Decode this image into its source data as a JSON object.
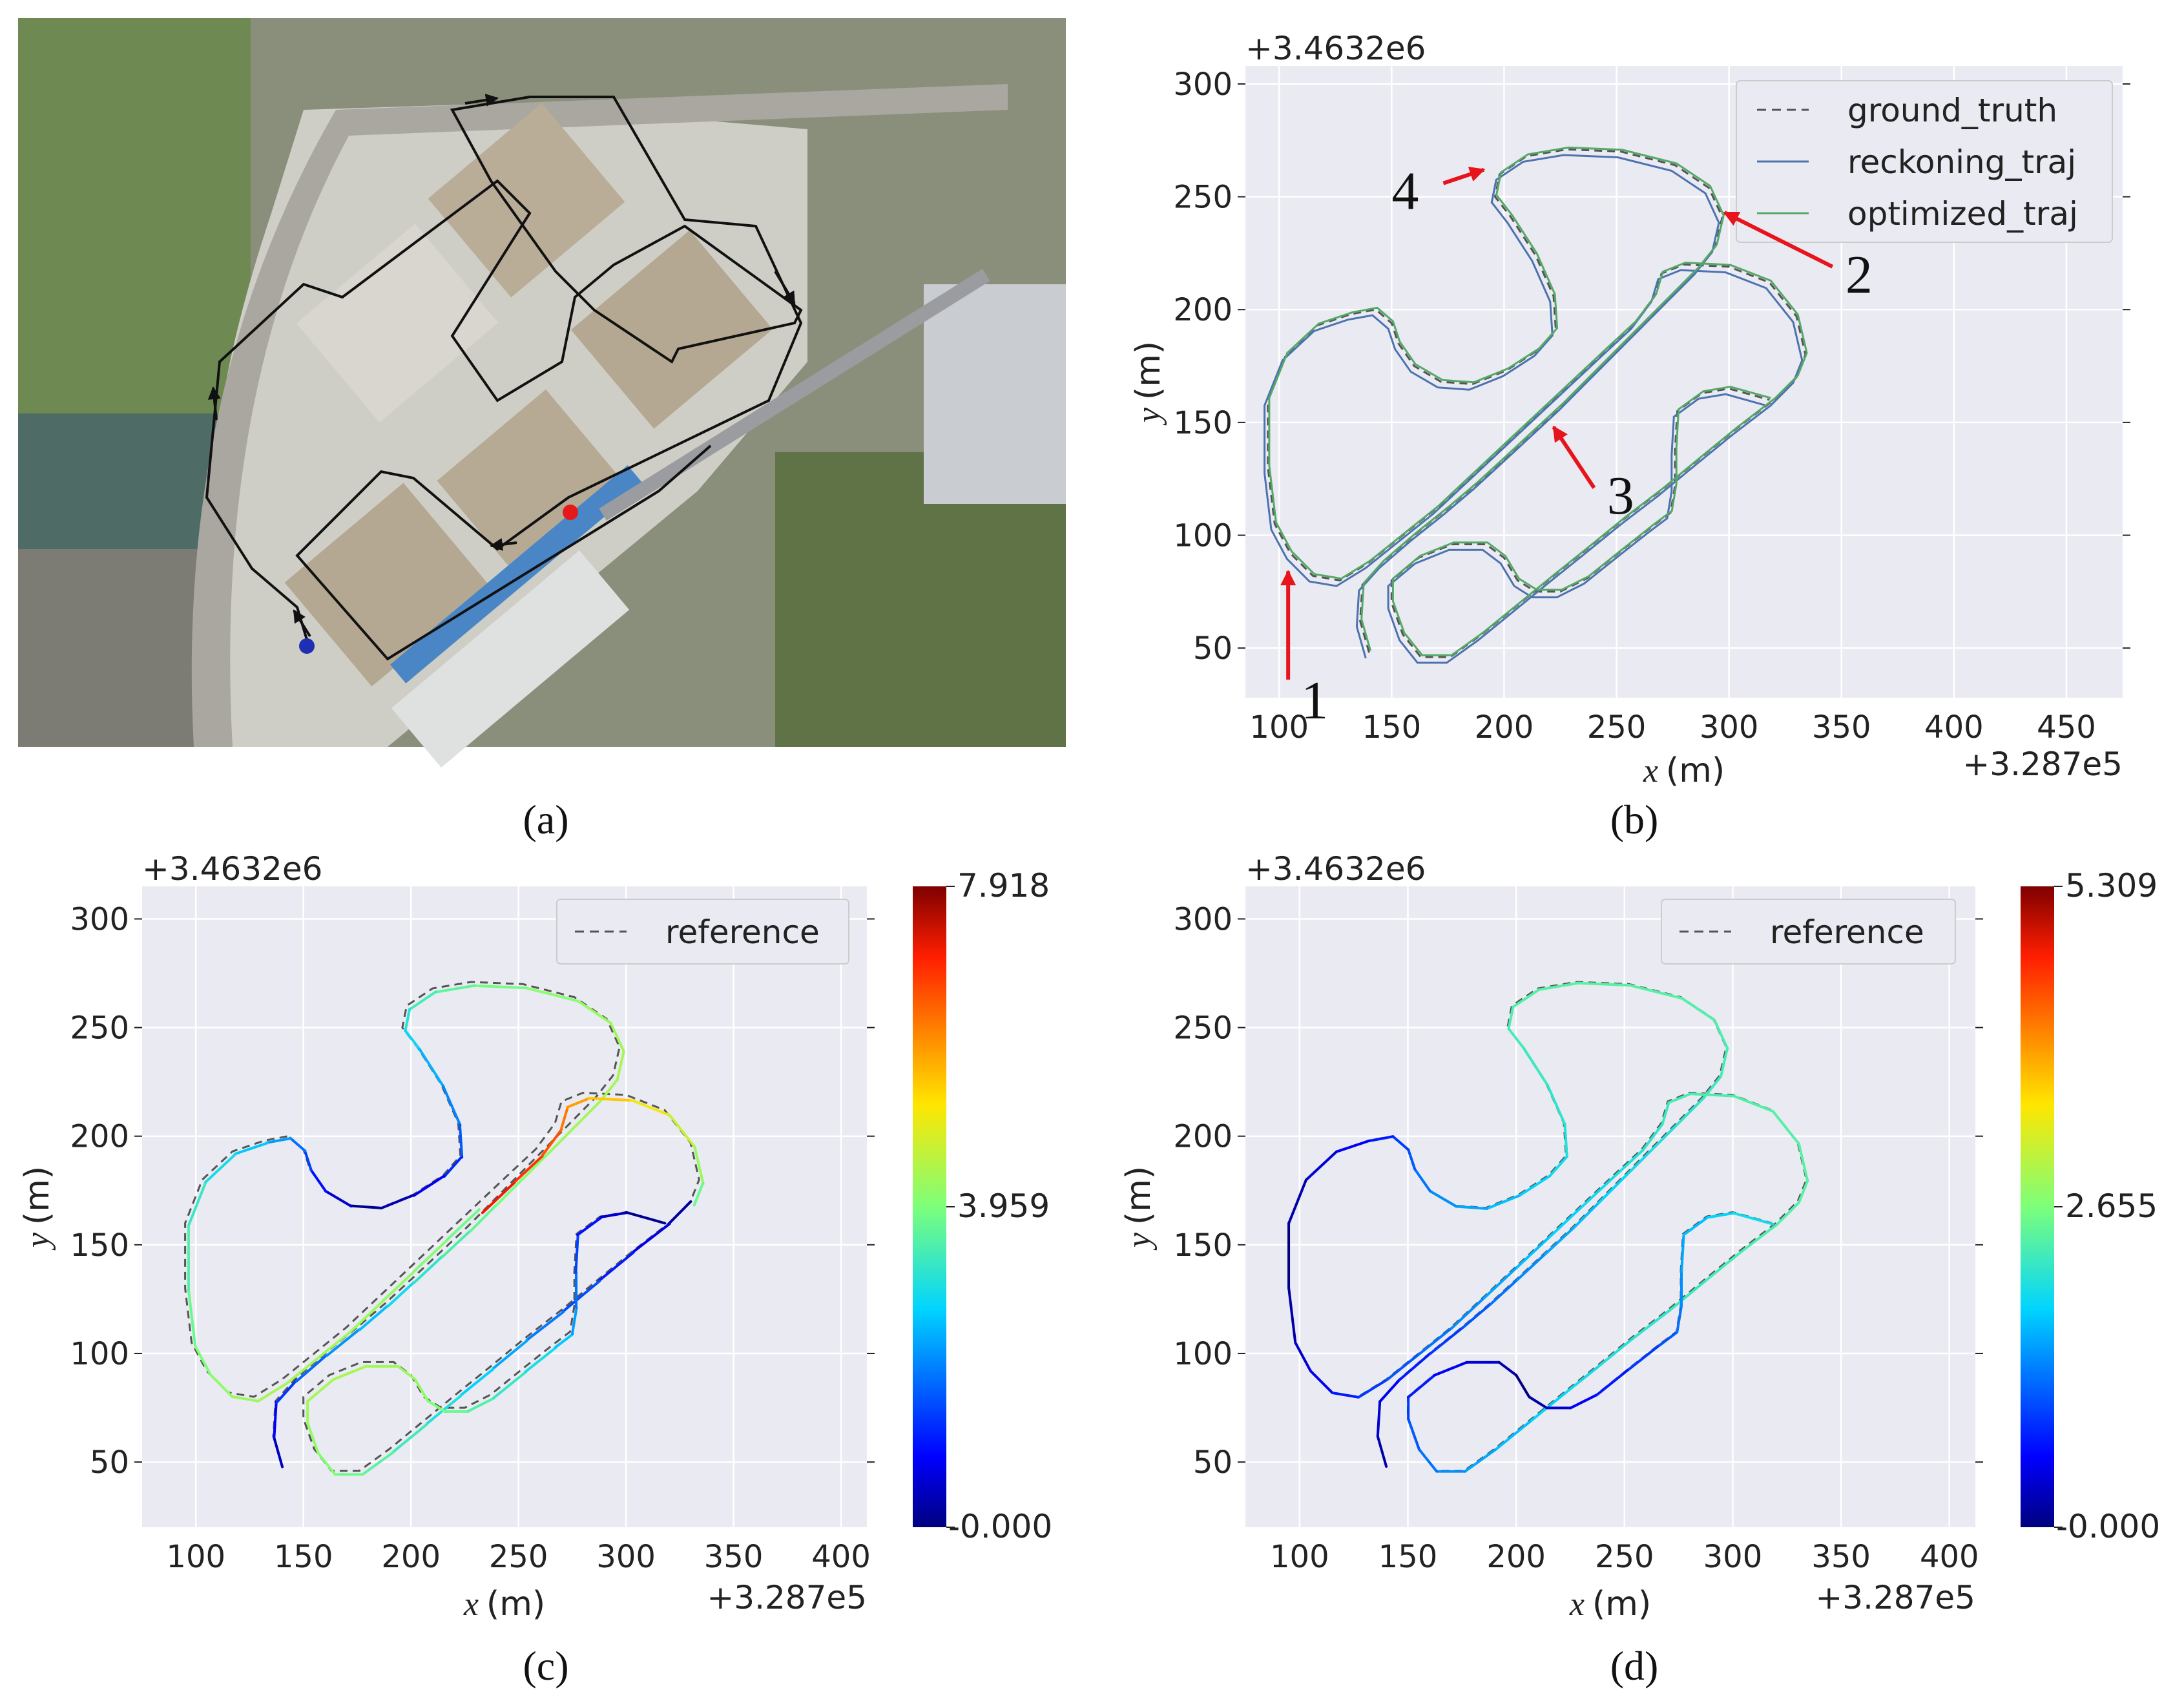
{
  "panels": {
    "a": {
      "caption": "(a)"
    },
    "b": {
      "caption": "(b)"
    },
    "c": {
      "caption": "(c)"
    },
    "d": {
      "caption": "(d)"
    }
  },
  "colors": {
    "plot_bg": "#eaeaf2",
    "grid": "#ffffff",
    "ground_truth": "#555555",
    "reckoning": "#4c72b0",
    "optimized": "#55a868",
    "arrow": "#e8141b"
  },
  "chart_data": [
    {
      "panel": "b",
      "type": "line",
      "xlabel_var": "x",
      "xlabel_unit": "(m)",
      "ylabel_var": "y",
      "ylabel_unit": "(m)",
      "x_offset_text": "+3.287e5",
      "y_offset_text": "+3.4632e6",
      "xlim": [
        85,
        475
      ],
      "ylim": [
        28,
        308
      ],
      "xticks": [
        100,
        150,
        200,
        250,
        300,
        350,
        400,
        450
      ],
      "yticks": [
        50,
        100,
        150,
        200,
        250,
        300
      ],
      "grid": true,
      "legend_position": "top-right",
      "series": [
        {
          "name": "ground_truth",
          "style": "dashed"
        },
        {
          "name": "reckoning_traj",
          "style": "solid"
        },
        {
          "name": "optimized_traj",
          "style": "solid"
        }
      ],
      "annotations": [
        {
          "label": "1",
          "target": [
            104,
            84
          ]
        },
        {
          "label": "2",
          "target": [
            298,
            243
          ]
        },
        {
          "label": "3",
          "target": [
            222,
            148
          ]
        },
        {
          "label": "4",
          "target": [
            191,
            262
          ]
        }
      ]
    },
    {
      "panel": "c",
      "type": "line",
      "xlabel_var": "x",
      "xlabel_unit": "(m)",
      "ylabel_var": "y",
      "ylabel_unit": "(m)",
      "x_offset_text": "+3.287e5",
      "y_offset_text": "+3.4632e6",
      "xlim": [
        75,
        412
      ],
      "ylim": [
        20,
        315
      ],
      "xticks": [
        100,
        150,
        200,
        250,
        300,
        350,
        400
      ],
      "yticks": [
        50,
        100,
        150,
        200,
        250,
        300
      ],
      "grid": true,
      "legend_position": "top-right",
      "series": [
        {
          "name": "reference",
          "style": "dashed"
        }
      ],
      "colorbar": {
        "ticks": [
          "7.918",
          "3.959",
          "-0.000"
        ],
        "min": 0,
        "max": 7.918,
        "colormap": "jet"
      }
    },
    {
      "panel": "d",
      "type": "line",
      "xlabel_var": "x",
      "xlabel_unit": "(m)",
      "ylabel_var": "y",
      "ylabel_unit": "(m)",
      "x_offset_text": "+3.287e5",
      "y_offset_text": "+3.4632e6",
      "xlim": [
        75,
        412
      ],
      "ylim": [
        20,
        315
      ],
      "xticks": [
        100,
        150,
        200,
        250,
        300,
        350,
        400
      ],
      "yticks": [
        50,
        100,
        150,
        200,
        250,
        300
      ],
      "grid": true,
      "legend_position": "top-right",
      "series": [
        {
          "name": "reference",
          "style": "dashed"
        }
      ],
      "colorbar": {
        "ticks": [
          "5.309",
          "2.655",
          "-0.000"
        ],
        "min": 0,
        "max": 5.309,
        "colormap": "jet"
      }
    }
  ]
}
